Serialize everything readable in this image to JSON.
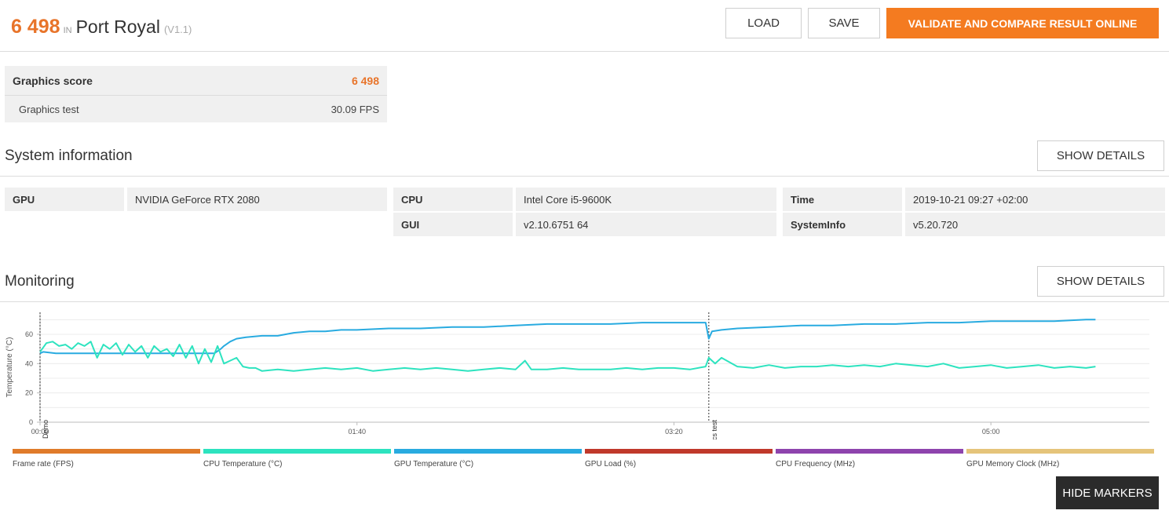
{
  "header": {
    "score": "6 498",
    "in_label": "IN",
    "benchmark": "Port Royal",
    "version": "(V1.1)",
    "load_label": "LOAD",
    "save_label": "SAVE",
    "validate_label": "VALIDATE AND COMPARE RESULT ONLINE"
  },
  "scores": {
    "graphics_score_label": "Graphics score",
    "graphics_score_value": "6 498",
    "graphics_test_label": "Graphics test",
    "graphics_test_value": "30.09 FPS"
  },
  "system_info": {
    "title": "System information",
    "details_label": "SHOW DETAILS",
    "gpu_key": "GPU",
    "gpu_value": "NVIDIA GeForce RTX 2080",
    "cpu_key": "CPU",
    "cpu_value": "Intel Core i5-9600K",
    "gui_key": "GUI",
    "gui_value": "v2.10.6751 64",
    "time_key": "Time",
    "time_value": "2019-10-21 09:27 +02:00",
    "sysinfo_key": "SystemInfo",
    "sysinfo_value": "v5.20.720"
  },
  "monitoring": {
    "title": "Monitoring",
    "details_label": "SHOW DETAILS",
    "hide_markers_label": "HIDE MARKERS"
  },
  "chart_data": {
    "type": "line",
    "ylabel": "Temperature (°C)",
    "ylim": [
      0,
      75
    ],
    "yticks": [
      "0",
      "20",
      "40",
      "60"
    ],
    "xlim": [
      0,
      350
    ],
    "xticks": [
      {
        "t": 0,
        "label": "00:00"
      },
      {
        "t": 100,
        "label": "01:40"
      },
      {
        "t": 200,
        "label": "03:20"
      },
      {
        "t": 300,
        "label": "05:00"
      }
    ],
    "markers": [
      {
        "t": 0,
        "label": "Demo"
      },
      {
        "t": 211,
        "label": "Graphics test"
      }
    ],
    "legend": [
      {
        "name": "Frame rate (FPS)",
        "color": "#e07b2a"
      },
      {
        "name": "CPU Temperature (°C)",
        "color": "#2de3bf"
      },
      {
        "name": "GPU Temperature (°C)",
        "color": "#29abe0"
      },
      {
        "name": "GPU Load (%)",
        "color": "#c0392b"
      },
      {
        "name": "CPU Frequency (MHz)",
        "color": "#8e44ad"
      },
      {
        "name": "GPU Memory Clock (MHz)",
        "color": "#e5c47a"
      }
    ],
    "series": [
      {
        "name": "GPU Temperature (°C)",
        "color": "#29abe0",
        "x": [
          0,
          1,
          5,
          20,
          40,
          55,
          57,
          58,
          60,
          62,
          65,
          70,
          75,
          80,
          85,
          90,
          95,
          100,
          110,
          120,
          130,
          140,
          150,
          160,
          170,
          180,
          190,
          200,
          210,
          211,
          212,
          215,
          220,
          230,
          240,
          250,
          260,
          270,
          280,
          290,
          300,
          310,
          320,
          330,
          333
        ],
        "values": [
          47,
          48,
          47,
          47,
          47,
          47,
          50,
          52,
          55,
          57,
          58,
          59,
          59,
          61,
          62,
          62,
          63,
          63,
          64,
          64,
          65,
          65,
          66,
          67,
          67,
          67,
          68,
          68,
          68,
          57,
          62,
          63,
          64,
          65,
          66,
          66,
          67,
          67,
          68,
          68,
          69,
          69,
          69,
          70,
          70
        ]
      },
      {
        "name": "CPU Temperature (°C)",
        "color": "#2de3bf",
        "x": [
          0,
          2,
          4,
          6,
          8,
          10,
          12,
          14,
          16,
          18,
          20,
          22,
          24,
          26,
          28,
          30,
          32,
          34,
          36,
          38,
          40,
          42,
          44,
          46,
          48,
          50,
          52,
          54,
          56,
          58,
          60,
          62,
          64,
          66,
          68,
          70,
          75,
          80,
          85,
          90,
          95,
          100,
          105,
          110,
          115,
          120,
          125,
          130,
          135,
          140,
          145,
          150,
          153,
          155,
          160,
          165,
          170,
          175,
          180,
          185,
          190,
          195,
          200,
          205,
          210,
          211,
          213,
          215,
          220,
          225,
          230,
          235,
          240,
          245,
          250,
          255,
          260,
          265,
          270,
          275,
          280,
          285,
          290,
          295,
          300,
          305,
          310,
          315,
          320,
          325,
          330,
          333
        ],
        "values": [
          48,
          54,
          55,
          52,
          53,
          50,
          54,
          52,
          55,
          44,
          53,
          50,
          54,
          46,
          53,
          48,
          52,
          44,
          52,
          48,
          50,
          45,
          53,
          44,
          52,
          40,
          50,
          41,
          52,
          40,
          42,
          44,
          38,
          37,
          37,
          35,
          36,
          35,
          36,
          37,
          36,
          37,
          35,
          36,
          37,
          36,
          37,
          36,
          35,
          36,
          37,
          36,
          42,
          36,
          36,
          37,
          36,
          36,
          36,
          37,
          36,
          37,
          37,
          36,
          38,
          44,
          40,
          44,
          38,
          37,
          39,
          37,
          38,
          38,
          39,
          38,
          39,
          38,
          40,
          39,
          38,
          40,
          37,
          38,
          39,
          37,
          38,
          39,
          37,
          38,
          37,
          38
        ]
      }
    ]
  }
}
